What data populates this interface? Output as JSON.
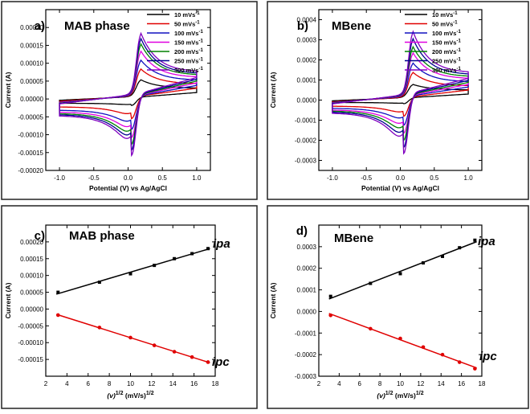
{
  "chart_data": [
    {
      "type": "line",
      "panel_label": "a)",
      "title": "MAB phase",
      "xlabel": "Potential (V) vs Ag/AgCl",
      "ylabel": "Current (A)",
      "xlim": [
        -1.2,
        1.2
      ],
      "ylim": [
        -0.0002,
        0.00025
      ],
      "xticks": [
        -1.0,
        -0.5,
        0.0,
        0.5,
        1.0
      ],
      "xtick_labels": [
        "-1.0",
        "-0.5",
        "0.0",
        "0.5",
        "1.0"
      ],
      "yticks": [
        -0.0002,
        -0.00015,
        -0.0001,
        -5e-05,
        0,
        5e-05,
        0.0001,
        0.00015,
        0.0002
      ],
      "ytick_labels": [
        "-0.00020",
        "-0.00015",
        "-0.00010",
        "-0.00005",
        "0.00000",
        "0.00005",
        "0.00010",
        "0.00015",
        "0.00020"
      ],
      "legend_unit": "mVs",
      "legend_exp": "-1",
      "series": [
        {
          "name": "10",
          "color": "#000000",
          "anodic_peak": 5e-05,
          "cathodic_peak": -1.8e-05,
          "end_high": 3e-05,
          "start_low": -1.2e-05,
          "end_low": 1.8e-05
        },
        {
          "name": "50",
          "color": "#e00000",
          "anodic_peak": 8e-05,
          "cathodic_peak": -5.5e-05,
          "end_high": 4.2e-05,
          "start_low": -2.2e-05,
          "end_low": 3e-05
        },
        {
          "name": "100",
          "color": "#1010c0",
          "anodic_peak": 0.000105,
          "cathodic_peak": -8.5e-05,
          "end_high": 5.2e-05,
          "start_low": -3.1e-05,
          "end_low": 3.8e-05
        },
        {
          "name": "150",
          "color": "#e000e0",
          "anodic_peak": 0.00013,
          "cathodic_peak": -0.000108,
          "end_high": 6e-05,
          "start_low": -3.6e-05,
          "end_low": 4.5e-05
        },
        {
          "name": "200",
          "color": "#008000",
          "anodic_peak": 0.00015,
          "cathodic_peak": -0.000127,
          "end_high": 6.6e-05,
          "start_low": -4e-05,
          "end_low": 5e-05
        },
        {
          "name": "250",
          "color": "#000090",
          "anodic_peak": 0.000165,
          "cathodic_peak": -0.000143,
          "end_high": 7e-05,
          "start_low": -4.3e-05,
          "end_low": 5.5e-05
        },
        {
          "name": "300",
          "color": "#8000c0",
          "anodic_peak": 0.00018,
          "cathodic_peak": -0.000158,
          "end_high": 7.5e-05,
          "start_low": -4.6e-05,
          "end_low": 6e-05
        }
      ]
    },
    {
      "type": "line",
      "panel_label": "b)",
      "title": "MBene",
      "xlabel": "Potential (V) vs Ag/AgCl",
      "ylabel": "Current (A)",
      "xlim": [
        -1.2,
        1.2
      ],
      "ylim": [
        -0.00035,
        0.00045
      ],
      "xticks": [
        -1.0,
        -0.5,
        0.0,
        0.5,
        1.0
      ],
      "xtick_labels": [
        "-1.0",
        "-0.5",
        "0.0",
        "0.5",
        "1.0"
      ],
      "yticks": [
        -0.0003,
        -0.0002,
        -0.0001,
        0,
        0.0001,
        0.0002,
        0.0003,
        0.0004
      ],
      "ytick_labels": [
        "-0.0003",
        "-0.0002",
        "-0.0001",
        "0.0000",
        "0.0001",
        "0.0002",
        "0.0003",
        "0.0004"
      ],
      "legend_unit": "mVs",
      "legend_exp": "-1",
      "series": [
        {
          "name": "10",
          "color": "#000000",
          "anodic_peak": 7e-05,
          "cathodic_peak": -1.8e-05,
          "end_high": 5e-05,
          "start_low": -1.2e-05,
          "end_low": 3e-05
        },
        {
          "name": "50",
          "color": "#e00000",
          "anodic_peak": 0.00013,
          "cathodic_peak": -8e-05,
          "end_high": 7e-05,
          "start_low": -3e-05,
          "end_low": 5e-05
        },
        {
          "name": "100",
          "color": "#1010c0",
          "anodic_peak": 0.000175,
          "cathodic_peak": -0.000125,
          "end_high": 9e-05,
          "start_low": -4e-05,
          "end_low": 6.5e-05
        },
        {
          "name": "150",
          "color": "#e000e0",
          "anodic_peak": 0.000225,
          "cathodic_peak": -0.000165,
          "end_high": 0.000105,
          "start_low": -4.8e-05,
          "end_low": 7.8e-05
        },
        {
          "name": "200",
          "color": "#008000",
          "anodic_peak": 0.000255,
          "cathodic_peak": -0.0002,
          "end_high": 0.000115,
          "start_low": -5.3e-05,
          "end_low": 8.8e-05
        },
        {
          "name": "250",
          "color": "#000090",
          "anodic_peak": 0.000295,
          "cathodic_peak": -0.000235,
          "end_high": 0.000125,
          "start_low": -5.8e-05,
          "end_low": 9.8e-05
        },
        {
          "name": "300",
          "color": "#8000c0",
          "anodic_peak": 0.00033,
          "cathodic_peak": -0.000265,
          "end_high": 0.000135,
          "start_low": -6.3e-05,
          "end_low": 0.000108
        }
      ]
    },
    {
      "type": "scatter",
      "panel_label": "c)",
      "title": "MAB phase",
      "xlabel_pre": "(v)",
      "xlabel_sup": "1/2",
      "xlabel_mid": " (mV/s)",
      "xlabel_sup2": "1/2",
      "ylabel": "Current (A)",
      "xlim": [
        2,
        18
      ],
      "ylim": [
        -0.0002,
        0.00025
      ],
      "xticks": [
        2,
        4,
        6,
        8,
        10,
        12,
        14,
        16,
        18
      ],
      "xtick_labels": [
        "2",
        "4",
        "6",
        "8",
        "10",
        "12",
        "14",
        "16",
        "18"
      ],
      "yticks": [
        -0.00015,
        -0.0001,
        -5e-05,
        0,
        5e-05,
        0.0001,
        0.00015,
        0.0002
      ],
      "ytick_labels": [
        "-0.00015",
        "-0.00010",
        "-0.00005",
        "0.00000",
        "0.00005",
        "0.00010",
        "0.00015",
        "0.00020"
      ],
      "x": [
        3.16,
        7.07,
        10.0,
        12.25,
        14.14,
        15.81,
        17.32
      ],
      "series": [
        {
          "name": "ipa",
          "color": "#000000",
          "marker": "square",
          "values": [
            5e-05,
            8e-05,
            0.000105,
            0.00013,
            0.00015,
            0.000165,
            0.00018
          ]
        },
        {
          "name": "ipc",
          "color": "#e00000",
          "marker": "circle",
          "values": [
            -1.8e-05,
            -5.5e-05,
            -8.5e-05,
            -0.000108,
            -0.000127,
            -0.000143,
            -0.000158
          ]
        }
      ]
    },
    {
      "type": "scatter",
      "panel_label": "d)",
      "title": "MBene",
      "xlabel_pre": "(v)",
      "xlabel_sup": "1/2",
      "xlabel_mid": " (mV/s)",
      "xlabel_sup2": "1/2",
      "ylabel": "Current (A)",
      "xlim": [
        2,
        18
      ],
      "ylim": [
        -0.0003,
        0.0004
      ],
      "xticks": [
        2,
        4,
        6,
        8,
        10,
        12,
        14,
        16,
        18
      ],
      "xtick_labels": [
        "2",
        "4",
        "6",
        "8",
        "10",
        "12",
        "14",
        "16",
        "18"
      ],
      "yticks": [
        -0.0003,
        -0.0002,
        -0.0001,
        0,
        0.0001,
        0.0002,
        0.0003
      ],
      "ytick_labels": [
        "-0.0003",
        "-0.0002",
        "-0.0001",
        "0.0000",
        "0.0001",
        "0.0002",
        "0.0003"
      ],
      "x": [
        3.16,
        7.07,
        10.0,
        12.25,
        14.14,
        15.81,
        17.32
      ],
      "series": [
        {
          "name": "ipa",
          "color": "#000000",
          "marker": "square",
          "values": [
            7e-05,
            0.00013,
            0.000175,
            0.000225,
            0.000255,
            0.000295,
            0.00033
          ]
        },
        {
          "name": "ipc",
          "color": "#e00000",
          "marker": "circle",
          "values": [
            -1.8e-05,
            -8e-05,
            -0.000125,
            -0.000165,
            -0.0002,
            -0.000235,
            -0.000265
          ]
        }
      ]
    }
  ]
}
